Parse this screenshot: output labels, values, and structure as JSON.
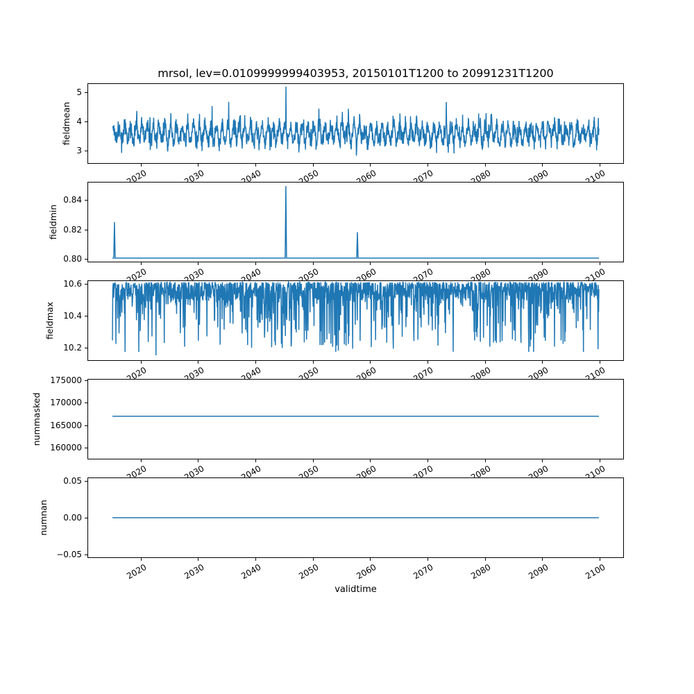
{
  "title": "mrsol, lev=0.0109999999403953, 20150101T1200 to 20991231T1200",
  "xaxis": {
    "label": "validtime",
    "xlim": [
      2010.75,
      2104.25
    ],
    "data_start_year": 2015.0,
    "data_end_year": 2100.0,
    "xticks": [
      2020,
      2030,
      2040,
      2050,
      2060,
      2070,
      2080,
      2090,
      2100
    ],
    "xtick_labels": [
      "2020",
      "2030",
      "2040",
      "2050",
      "2060",
      "2070",
      "2080",
      "2090",
      "2100"
    ]
  },
  "style": {
    "line_color": "#1f77b4",
    "axis_color": "#000000",
    "background": "#ffffff"
  },
  "chart_data": [
    {
      "type": "line",
      "ylabel": "fieldmean",
      "ylim": [
        2.548,
        5.31
      ],
      "yticks": [
        {
          "v": 3,
          "label": "3"
        },
        {
          "v": 4,
          "label": "4"
        },
        {
          "v": 5,
          "label": "5"
        }
      ],
      "series": {
        "kind": "seasonal-noise",
        "n": 1700,
        "seed": 42,
        "base": 3.58,
        "season_amp": 0.42,
        "noise_amp": 0.29,
        "spike_prob": 0.012,
        "clip": [
          2.62,
          5.05
        ],
        "spikes": [
          {
            "t": 2045.3,
            "v": 5.22
          }
        ]
      },
      "approx_value_range": [
        2.7,
        5.22
      ]
    },
    {
      "type": "line",
      "ylabel": "fieldmin",
      "ylim": [
        0.7975,
        0.8525
      ],
      "yticks": [
        {
          "v": 0.8,
          "label": "0.80"
        },
        {
          "v": 0.82,
          "label": "0.82"
        },
        {
          "v": 0.84,
          "label": "0.84"
        }
      ],
      "series": {
        "kind": "flat-with-spikes",
        "baseline": 0.8,
        "spike_halfwidth_years": 0.12,
        "spikes": [
          {
            "t": 2015.35,
            "v": 0.825
          },
          {
            "t": 2045.3,
            "v": 0.85
          },
          {
            "t": 2057.8,
            "v": 0.818
          }
        ]
      }
    },
    {
      "type": "line",
      "ylabel": "fieldmax",
      "ylim": [
        10.117,
        10.622
      ],
      "yticks": [
        {
          "v": 10.2,
          "label": "10.2"
        },
        {
          "v": 10.4,
          "label": "10.4"
        },
        {
          "v": 10.6,
          "label": "10.6"
        }
      ],
      "series": {
        "kind": "ceiling-noise",
        "n": 1700,
        "seed": 7,
        "ceiling": 10.615,
        "shallow_dip": 0.12,
        "dip_prob": 0.3,
        "deep_dip": 0.36,
        "clip_min": 10.17,
        "spikes": [
          {
            "t": 2022.6,
            "v": 10.148
          },
          {
            "t": 2046.2,
            "v": 10.205
          },
          {
            "t": 2051.8,
            "v": 10.215
          },
          {
            "t": 2084.9,
            "v": 10.25
          }
        ]
      },
      "approx_value_range": [
        10.15,
        10.62
      ]
    },
    {
      "type": "line",
      "ylabel": "nummasked",
      "ylim": [
        157355,
        175310
      ],
      "yticks": [
        {
          "v": 160000,
          "label": "160000"
        },
        {
          "v": 165000,
          "label": "165000"
        },
        {
          "v": 170000,
          "label": "170000"
        },
        {
          "v": 175000,
          "label": "175000"
        }
      ],
      "series": {
        "kind": "constant",
        "value": 167000
      }
    },
    {
      "type": "line",
      "ylabel": "numnan",
      "ylim": [
        -0.055,
        0.055
      ],
      "yticks": [
        {
          "v": -0.05,
          "label": "−0.05"
        },
        {
          "v": 0.0,
          "label": "0.00"
        },
        {
          "v": 0.05,
          "label": "0.05"
        }
      ],
      "series": {
        "kind": "constant",
        "value": 0
      }
    }
  ]
}
